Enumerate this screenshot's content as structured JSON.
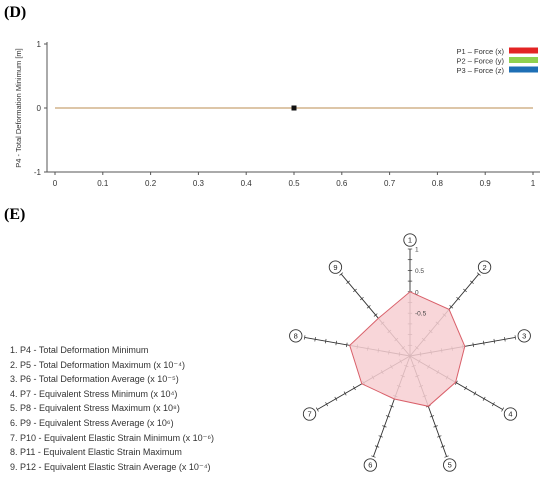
{
  "panels": {
    "d": "(D)",
    "e": "(E)"
  },
  "chart_data": [
    {
      "type": "line",
      "ylabel": "P4 - Total Deformation Minimum [m]",
      "xlim": [
        0,
        1
      ],
      "ylim": [
        -1,
        1
      ],
      "x_ticks": [
        "0",
        "0.1",
        "0.2",
        "0.3",
        "0.4",
        "0.5",
        "0.6",
        "0.7",
        "0.8",
        "0.9",
        "1"
      ],
      "y_ticks": [
        "1",
        "0",
        "-1"
      ],
      "grid": false,
      "legend_position": "top-right",
      "legend": [
        {
          "label": "P1 – Force (x)",
          "color": "#e32424"
        },
        {
          "label": "P2 – Force (y)",
          "color": "#8fd14f"
        },
        {
          "label": "P3 – Force (z)",
          "color": "#1e6fb5"
        }
      ],
      "series_color": "#d2b48c",
      "line": {
        "x": [
          0,
          1
        ],
        "y": [
          0,
          0
        ]
      },
      "point": {
        "x": 0.5,
        "y": 0
      }
    },
    {
      "type": "radar",
      "axes": [
        "1",
        "2",
        "3",
        "4",
        "5",
        "6",
        "7",
        "8",
        "9"
      ],
      "scale_ticks": [
        "1",
        "0.5",
        "0",
        "-0.5"
      ],
      "rlim": [
        -1.5,
        1
      ],
      "values": [
        0,
        -0.08,
        -0.2,
        -0.27,
        -0.25,
        -0.43,
        -0.2,
        -0.07,
        -0.35
      ],
      "fill_color": "#f7cfd2",
      "stroke_color": "#d9606a"
    }
  ],
  "parameter_list": [
    "1. P4 - Total Deformation Minimum",
    "2. P5 - Total Deformation Maximum (x 10⁻⁴)",
    "3. P6 - Total Deformation Average (x 10⁻⁵)",
    "4. P7 - Equivalent Stress Minimum (x 10⁴)",
    "5. P8 - Equivalent Stress Maximum (x 10⁸)",
    "6. P9 - Equivalent Stress Average (x 10⁶)",
    "7. P10 - Equivalent Elastic Strain Minimum (x 10⁻⁶)",
    "8. P11 - Equivalent Elastic Strain Maximum",
    "9. P12 - Equivalent Elastic Strain Average (x 10⁻⁴)"
  ]
}
